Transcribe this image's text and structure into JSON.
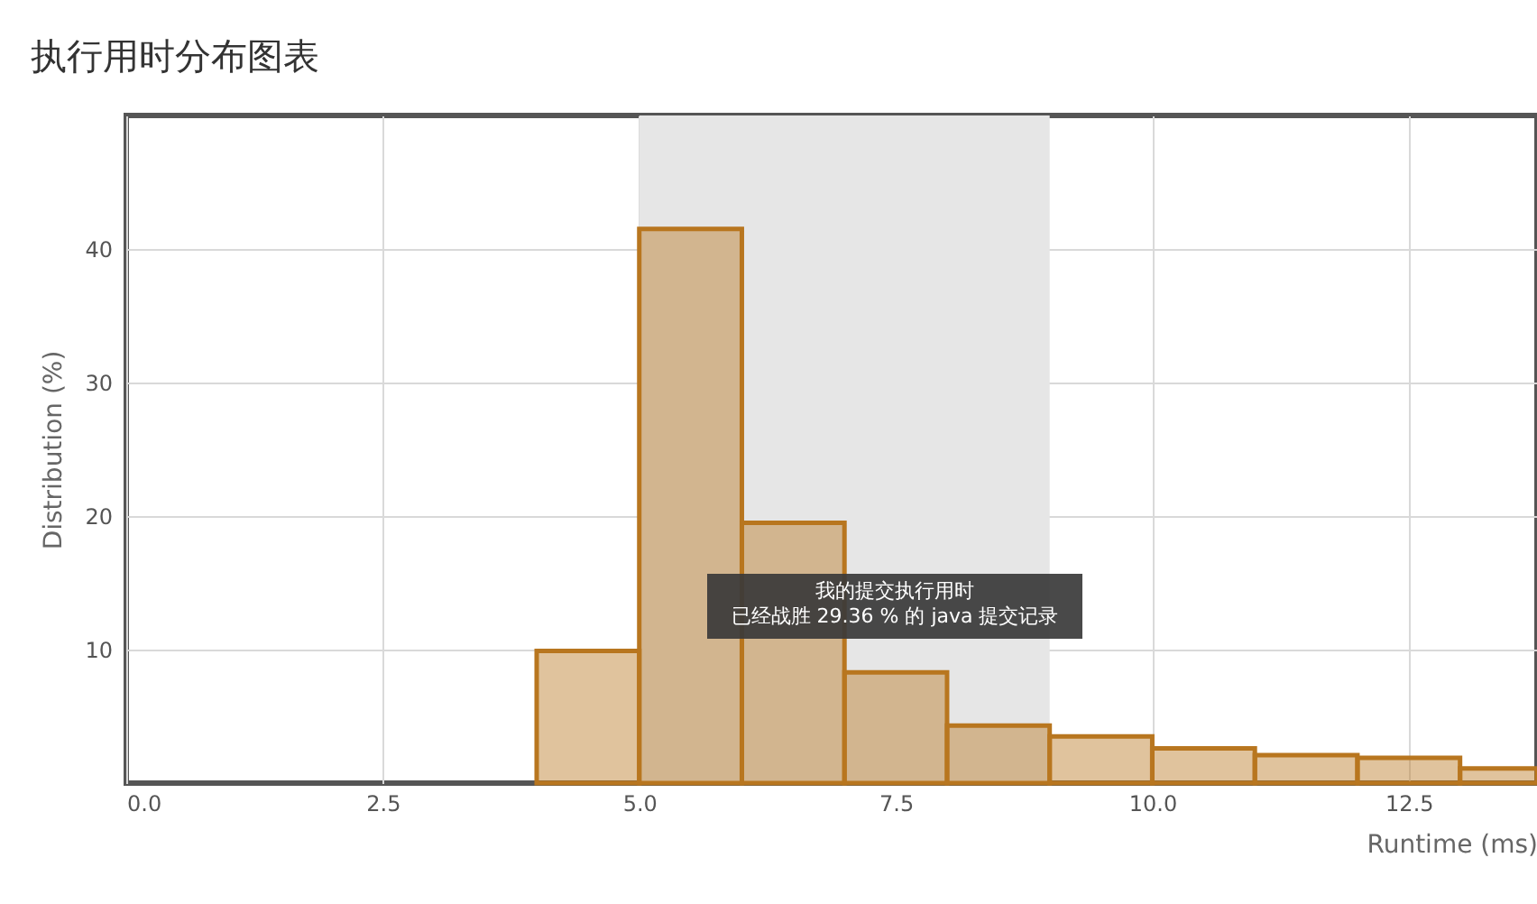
{
  "chart_data": {
    "type": "histogram",
    "title": "执行用时分布图表",
    "xlabel": "Runtime (ms)",
    "ylabel": "Distribution (%)",
    "bins": [
      4,
      5,
      6,
      7,
      8,
      9,
      10,
      11,
      12,
      13,
      13.75
    ],
    "values": [
      9.9,
      41.5,
      19.5,
      8.3,
      4.3,
      3.5,
      2.6,
      2.1,
      1.9,
      1.1
    ],
    "color": "#b8761f",
    "xlim": [
      0,
      13.75
    ],
    "ylim": [
      0,
      50
    ],
    "xticks": [
      {
        "value": 0,
        "label": "0.0"
      },
      {
        "value": 2.5,
        "label": "2.5"
      },
      {
        "value": 5,
        "label": "5.0"
      },
      {
        "value": 7.5,
        "label": "7.5"
      },
      {
        "value": 10,
        "label": "10.0"
      },
      {
        "value": 12.5,
        "label": "12.5"
      }
    ],
    "yticks": [
      10,
      20,
      30,
      40
    ],
    "bands": [
      {
        "axis": "x",
        "from": 5,
        "to": 9,
        "color": "#e6e6e6"
      }
    ],
    "annotations": [
      "我的提交执行用时",
      "已经战胜 29.36 % 的 java 提交记录"
    ],
    "grid": true
  }
}
